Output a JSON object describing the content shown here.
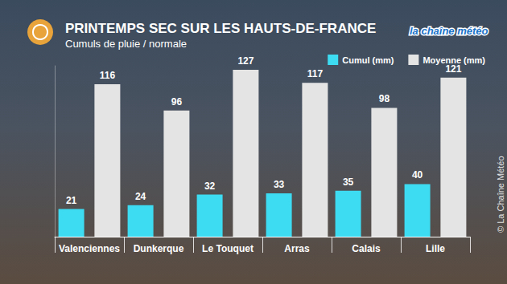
{
  "chart_data": {
    "type": "bar",
    "title": "PRINTEMPS SEC SUR LES HAUTS-DE-FRANCE",
    "subtitle": "Cumuls de pluie / normale",
    "categories": [
      "Valenciennes",
      "Dunkerque",
      "Le Touquet",
      "Arras",
      "Calais",
      "Lille"
    ],
    "series": [
      {
        "name": "Cumul (mm)",
        "color": "#3ddcf2",
        "values": [
          21,
          24,
          32,
          33,
          35,
          40
        ]
      },
      {
        "name": "Moyenne (mm)",
        "color": "#e4e4e4",
        "values": [
          116,
          96,
          127,
          117,
          98,
          121
        ]
      }
    ],
    "ylim": [
      0,
      130
    ],
    "grid": false,
    "legend": "top-right",
    "data_labels": true,
    "tick_labels": "x",
    "annotations": [
      "la chaîne météo",
      "© La Chaîne Météo"
    ]
  }
}
